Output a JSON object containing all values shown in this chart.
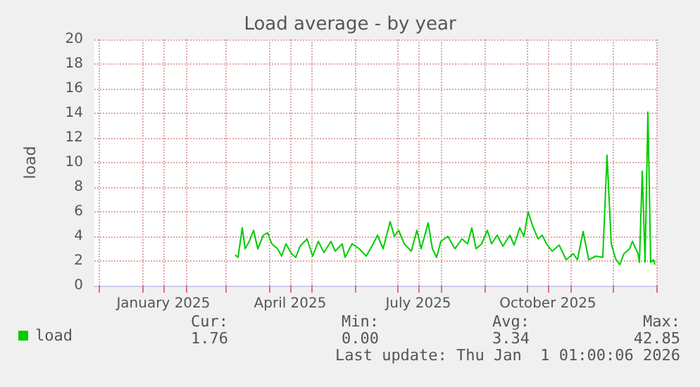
{
  "chart_data": {
    "type": "line",
    "title": "Load average - by year",
    "ylabel": "load",
    "x": [
      "2025-03-08",
      "2025-03-10",
      "2025-03-13",
      "2025-03-15",
      "2025-03-18",
      "2025-03-21",
      "2025-03-24",
      "2025-03-28",
      "2025-03-31",
      "2025-04-03",
      "2025-04-07",
      "2025-04-10",
      "2025-04-13",
      "2025-04-17",
      "2025-04-20",
      "2025-04-23",
      "2025-04-28",
      "2025-05-02",
      "2025-05-06",
      "2025-05-10",
      "2025-05-15",
      "2025-05-18",
      "2025-05-23",
      "2025-05-25",
      "2025-05-30",
      "2025-06-04",
      "2025-06-09",
      "2025-06-14",
      "2025-06-17",
      "2025-06-21",
      "2025-06-26",
      "2025-06-29",
      "2025-07-02",
      "2025-07-06",
      "2025-07-11",
      "2025-07-15",
      "2025-07-18",
      "2025-07-23",
      "2025-07-26",
      "2025-07-29",
      "2025-08-01",
      "2025-08-06",
      "2025-08-11",
      "2025-08-16",
      "2025-08-20",
      "2025-08-23",
      "2025-08-26",
      "2025-08-30",
      "2025-09-03",
      "2025-09-06",
      "2025-09-10",
      "2025-09-14",
      "2025-09-19",
      "2025-09-22",
      "2025-09-26",
      "2025-09-29",
      "2025-10-02",
      "2025-10-05",
      "2025-10-09",
      "2025-10-12",
      "2025-10-15",
      "2025-10-19",
      "2025-10-24",
      "2025-10-29",
      "2025-11-03",
      "2025-11-06",
      "2025-11-10",
      "2025-11-14",
      "2025-11-19",
      "2025-11-24",
      "2025-11-27",
      "2025-11-30",
      "2025-12-03",
      "2025-12-06",
      "2025-12-09",
      "2025-12-13",
      "2025-12-15",
      "2025-12-19",
      "2025-12-20",
      "2025-12-22",
      "2025-12-24",
      "2025-12-26",
      "2025-12-28",
      "2025-12-30",
      "2025-12-31"
    ],
    "series": [
      {
        "name": "load",
        "color": "#00cc00",
        "values": [
          2.5,
          2.3,
          4.7,
          3.0,
          3.6,
          4.5,
          3.0,
          4.1,
          4.3,
          3.4,
          3.0,
          2.4,
          3.4,
          2.6,
          2.3,
          3.2,
          3.8,
          2.4,
          3.6,
          2.7,
          3.6,
          2.8,
          3.4,
          2.3,
          3.4,
          3.0,
          2.4,
          3.4,
          4.1,
          3.0,
          5.2,
          4.0,
          4.5,
          3.4,
          2.8,
          4.5,
          3.0,
          5.1,
          3.0,
          2.3,
          3.6,
          4.0,
          3.0,
          3.8,
          3.4,
          4.7,
          3.0,
          3.4,
          4.5,
          3.4,
          4.1,
          3.2,
          4.1,
          3.3,
          4.7,
          4.0,
          6.0,
          4.9,
          3.8,
          4.1,
          3.4,
          2.8,
          3.3,
          2.1,
          2.6,
          2.1,
          4.4,
          2.1,
          2.4,
          2.3,
          10.6,
          3.4,
          2.2,
          1.7,
          2.6,
          3.0,
          3.6,
          2.6,
          1.9,
          9.3,
          1.9,
          14.1,
          1.9,
          2.1,
          1.7
        ]
      }
    ],
    "xlim": [
      "2024-11-28",
      "2026-01-01"
    ],
    "xticks": [
      {
        "value": "2024-12-01",
        "label": null
      },
      {
        "value": "2025-01-01",
        "label": null
      },
      {
        "value": "2025-01-16",
        "label": "January 2025"
      },
      {
        "value": "2025-02-01",
        "label": null
      },
      {
        "value": "2025-03-01",
        "label": null
      },
      {
        "value": "2025-04-01",
        "label": null
      },
      {
        "value": "2025-04-16",
        "label": "April 2025"
      },
      {
        "value": "2025-05-01",
        "label": null
      },
      {
        "value": "2025-06-01",
        "label": null
      },
      {
        "value": "2025-07-01",
        "label": null
      },
      {
        "value": "2025-07-16",
        "label": "July 2025"
      },
      {
        "value": "2025-08-01",
        "label": null
      },
      {
        "value": "2025-09-01",
        "label": null
      },
      {
        "value": "2025-10-01",
        "label": null
      },
      {
        "value": "2025-10-16",
        "label": "October 2025"
      },
      {
        "value": "2025-11-01",
        "label": null
      },
      {
        "value": "2025-12-01",
        "label": null
      },
      {
        "value": "2026-01-01",
        "label": null
      }
    ],
    "ylim": [
      0,
      20
    ],
    "yticks": [
      0,
      2,
      4,
      6,
      8,
      10,
      12,
      14,
      16,
      18,
      20
    ],
    "grid": true,
    "legend": "bottom left",
    "marker": "none",
    "line_style": "solid",
    "annotations": [
      "Cur:",
      "1.76",
      "Min:",
      "0.00",
      "Avg:",
      "3.34",
      "Max:",
      "42.85",
      "Last update: Thu Jan  1 01:00:06 2026"
    ]
  }
}
